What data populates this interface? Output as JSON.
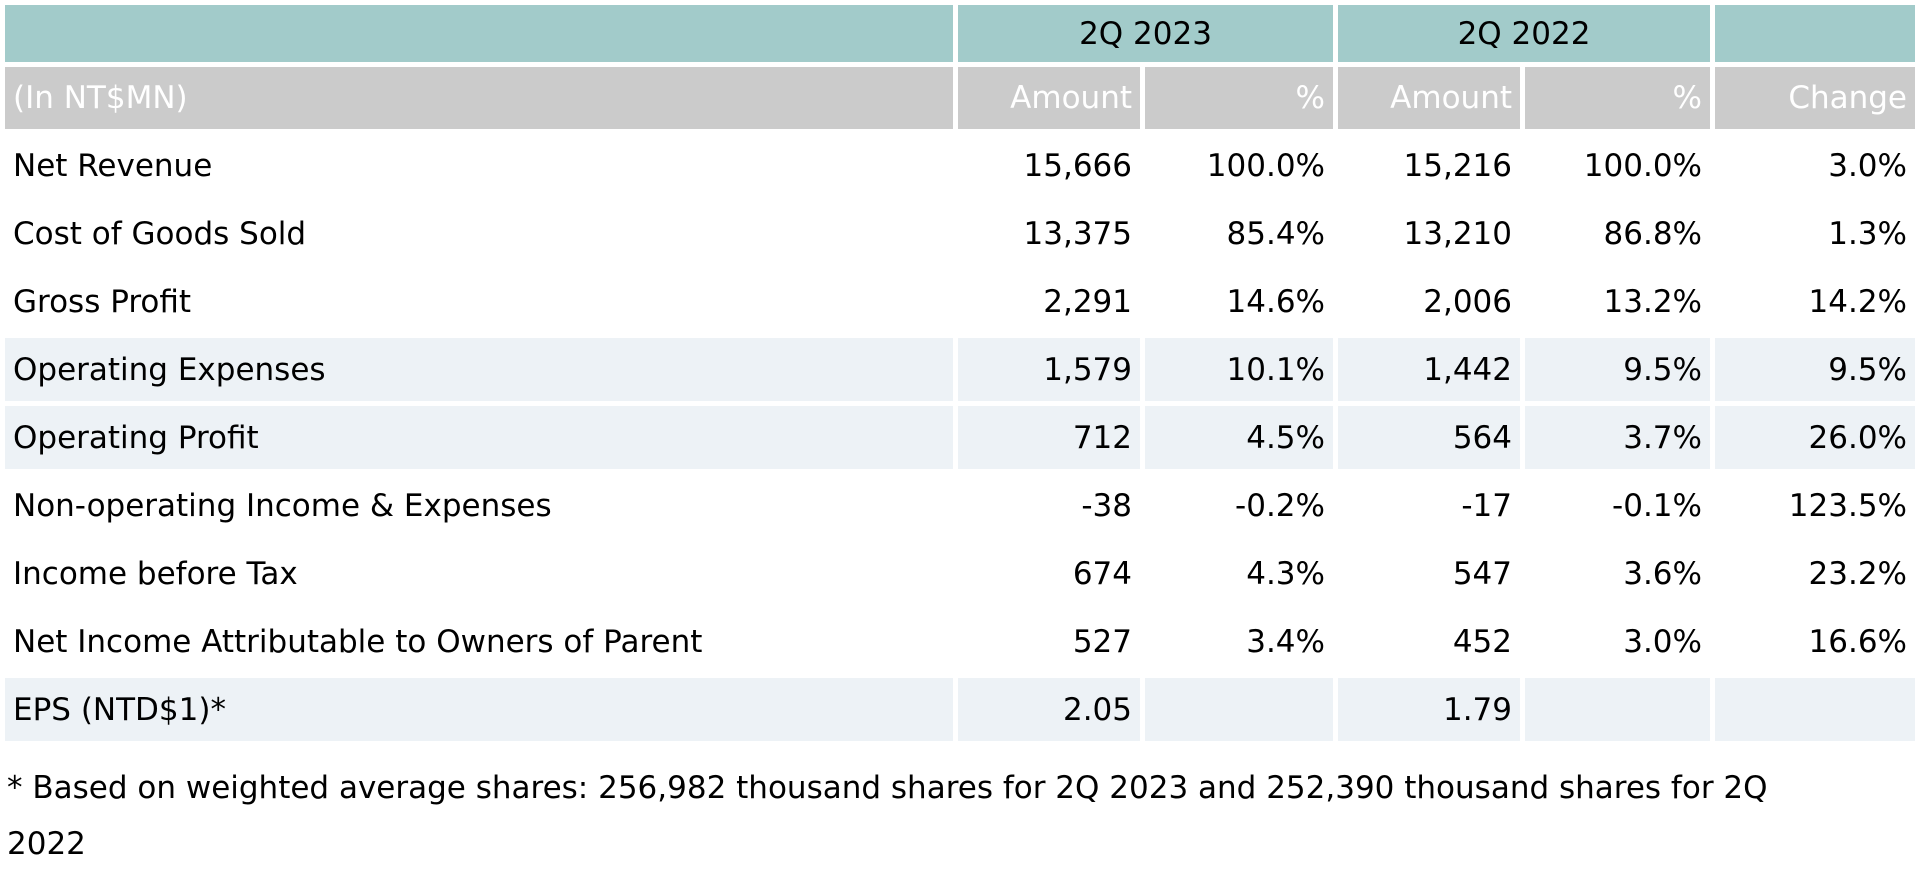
{
  "table": {
    "unit_label": "(In NT$MN)",
    "col_groups": [
      {
        "label": "2Q 2023"
      },
      {
        "label": "2Q 2022"
      }
    ],
    "sub_headers": {
      "amount": "Amount",
      "percent": "%",
      "change": "Change"
    },
    "rows": [
      {
        "label": "Net Revenue",
        "amount_2023": "15,666",
        "percent_2023": "100.0%",
        "amount_2022": "15,216",
        "percent_2022": "100.0%",
        "change": "3.0%",
        "shaded": false
      },
      {
        "label": "Cost of Goods Sold",
        "amount_2023": "13,375",
        "percent_2023": "85.4%",
        "amount_2022": "13,210",
        "percent_2022": "86.8%",
        "change": "1.3%",
        "shaded": false
      },
      {
        "label": "Gross Profit",
        "amount_2023": "2,291",
        "percent_2023": "14.6%",
        "amount_2022": "2,006",
        "percent_2022": "13.2%",
        "change": "14.2%",
        "shaded": false
      },
      {
        "label": "Operating Expenses",
        "amount_2023": "1,579",
        "percent_2023": "10.1%",
        "amount_2022": "1,442",
        "percent_2022": "9.5%",
        "change": "9.5%",
        "shaded": true
      },
      {
        "label": "Operating Profit",
        "amount_2023": "712",
        "percent_2023": "4.5%",
        "amount_2022": "564",
        "percent_2022": "3.7%",
        "change": "26.0%",
        "shaded": true
      },
      {
        "label": "Non-operating Income & Expenses",
        "amount_2023": "-38",
        "percent_2023": "-0.2%",
        "amount_2022": "-17",
        "percent_2022": "-0.1%",
        "change": "123.5%",
        "shaded": false
      },
      {
        "label": "Income before Tax",
        "amount_2023": "674",
        "percent_2023": "4.3%",
        "amount_2022": "547",
        "percent_2022": "3.6%",
        "change": "23.2%",
        "shaded": false
      },
      {
        "label": "Net Income Attributable to Owners of Parent",
        "amount_2023": "527",
        "percent_2023": "3.4%",
        "amount_2022": "452",
        "percent_2022": "3.0%",
        "change": "16.6%",
        "shaded": false
      },
      {
        "label": "EPS (NTD$1)*",
        "amount_2023": "2.05",
        "percent_2023": "",
        "amount_2022": "1.79",
        "percent_2022": "",
        "change": "",
        "shaded": true
      }
    ],
    "footnote": "* Based on weighted average shares: 256,982 thousand shares for 2Q 2023 and 252,390 thousand shares for 2Q 2022"
  },
  "colors": {
    "header_teal": "#a2cbca",
    "subheader_gray": "#cbcbcb",
    "row_shaded": "#edf2f6",
    "subheader_text": "#ffffff",
    "text": "#000000"
  }
}
